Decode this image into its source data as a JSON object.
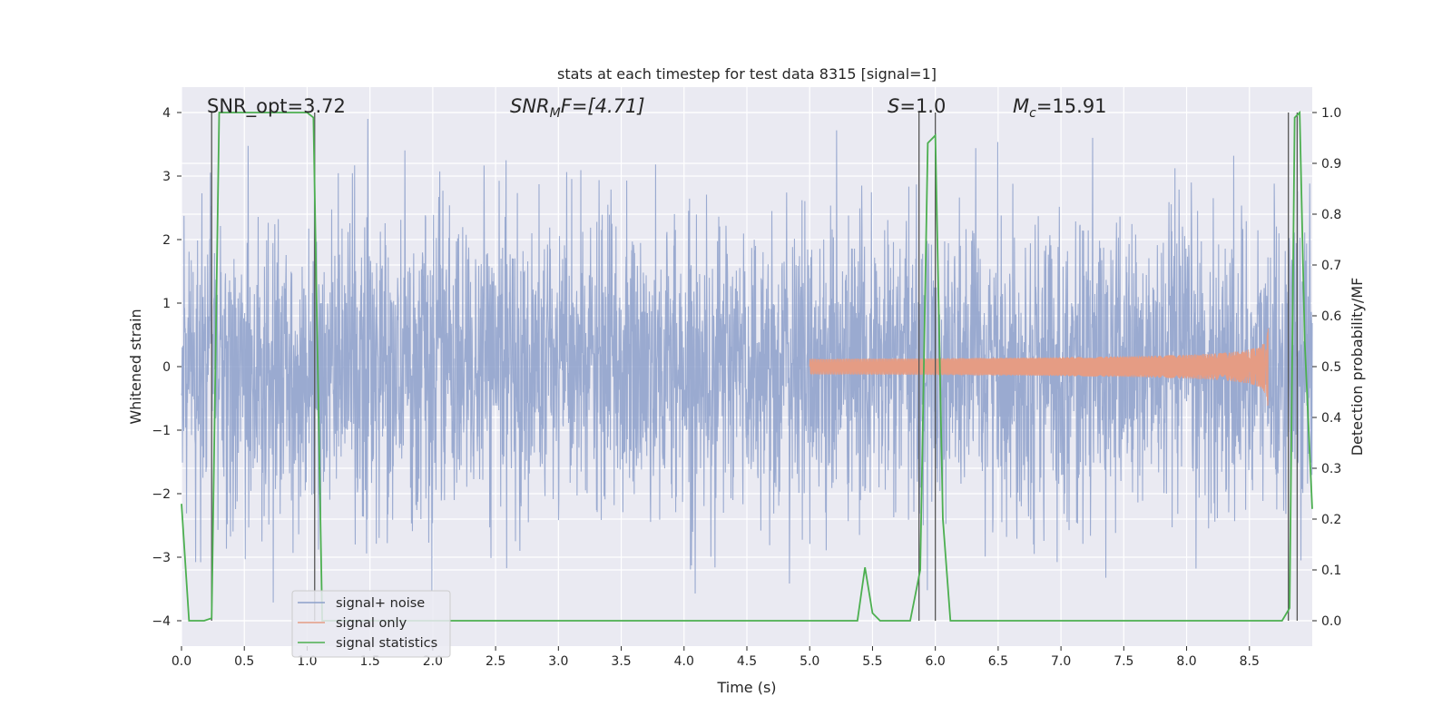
{
  "chart_data": {
    "type": "line",
    "title": "stats at each timestep for test data 8315 [signal=1]",
    "xlabel": "Time (s)",
    "ylabel": "Whitened strain",
    "ylabel_right": "Detection probability/MF",
    "xlim": [
      0,
      9.0
    ],
    "ylim": [
      -4.4,
      4.4
    ],
    "ylim_right": [
      -0.05,
      1.05
    ],
    "x_ticks": [
      "0.0",
      "0.5",
      "1.0",
      "1.5",
      "2.0",
      "2.5",
      "3.0",
      "3.5",
      "4.0",
      "4.5",
      "5.0",
      "5.5",
      "6.0",
      "6.5",
      "7.0",
      "7.5",
      "8.0",
      "8.5"
    ],
    "y_ticks": [
      "4",
      "3",
      "2",
      "1",
      "0",
      "−1",
      "−2",
      "−3",
      "−4"
    ],
    "y_ticks_right": [
      "1.0",
      "0.9",
      "0.8",
      "0.7",
      "0.6",
      "0.5",
      "0.4",
      "0.3",
      "0.2",
      "0.1",
      "0.0"
    ],
    "grid": true,
    "legend_position": "lower-left",
    "annotations": {
      "snr_opt": "SNR_opt=3.72",
      "snr_mf_sym": "SNR",
      "snr_mf_sub": "M",
      "snr_mf_rest": "F=[4.71]",
      "s_sym": "S",
      "s_rest": "=1.0",
      "mc_sym": "M",
      "mc_sub": "c",
      "mc_rest": "=15.91"
    },
    "series": [
      {
        "name": "signal+ noise",
        "color": "#8c9fca",
        "description_values": "whitened noise with signal, approx. amplitude range",
        "envelope": {
          "typical_abs": 1.6,
          "peak_max": 3.9,
          "peak_min": -4.0,
          "sample_rate_hz": 400
        }
      },
      {
        "name": "signal only",
        "color": "#e59c84",
        "chirp": {
          "start": 5.0,
          "merger": 8.65,
          "peak_amplitude": 0.8
        }
      },
      {
        "name": "signal statistics",
        "color": "#4caf50",
        "x": [
          0.0,
          0.06,
          0.18,
          0.24,
          0.3,
          1.0,
          1.05,
          1.12,
          5.38,
          5.44,
          5.5,
          5.56,
          5.8,
          5.88,
          5.94,
          6.0,
          6.06,
          6.12,
          8.76,
          8.82,
          8.86,
          8.9,
          8.94,
          9.0
        ],
        "values": [
          0.23,
          0.0,
          0.0,
          0.005,
          1.0,
          1.0,
          0.99,
          0.0,
          0.0,
          0.105,
          0.015,
          0.0,
          0.0,
          0.1,
          0.94,
          0.955,
          0.2,
          0.0,
          0.0,
          0.025,
          0.99,
          1.0,
          0.55,
          0.22
        ]
      }
    ],
    "vertical_markers": [
      0.24,
      1.06,
      5.87,
      6.0,
      8.81,
      8.88
    ]
  }
}
